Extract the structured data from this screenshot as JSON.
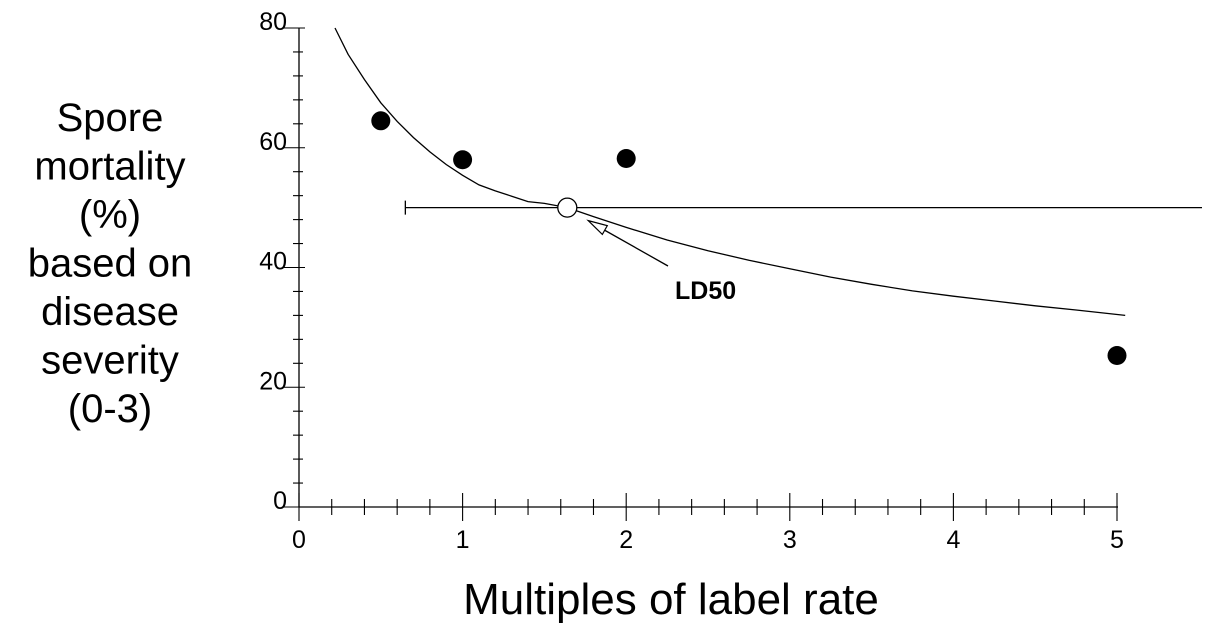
{
  "chart_data": {
    "type": "scatter",
    "title": "",
    "xlabel": "Multiples of label rate",
    "ylabel_lines": [
      "Spore",
      "mortality",
      "(%)",
      "based on",
      "disease",
      "severity",
      "(0-3)"
    ],
    "xlim": [
      0,
      5
    ],
    "ylim": [
      0,
      80
    ],
    "x_ticks": [
      "0",
      "1",
      "2",
      "3",
      "4",
      "5"
    ],
    "y_ticks": [
      "0",
      "20",
      "40",
      "60",
      "80"
    ],
    "grid": false,
    "series": [
      {
        "marker": "filled-circle",
        "x": [
          0.5,
          1,
          2,
          5
        ],
        "y": [
          64.5,
          58,
          58.2,
          25.3
        ]
      }
    ],
    "fit_curve": {
      "x": [
        0.22,
        0.3,
        0.4,
        0.5,
        0.6,
        0.7,
        0.8,
        0.9,
        1.0,
        1.1,
        1.2,
        1.3,
        1.4,
        1.5,
        1.64,
        1.8,
        2.0,
        2.25,
        2.5,
        2.75,
        3.0,
        3.25,
        3.5,
        3.75,
        4.0,
        4.25,
        4.5,
        4.75,
        5.05
      ],
      "y": [
        80,
        75.6,
        71.4,
        67.5,
        64.4,
        61.7,
        59.3,
        57.2,
        55.4,
        53.8,
        52.8,
        51.9,
        51.0,
        50.7,
        50,
        48.5,
        46.7,
        44.6,
        42.8,
        41.2,
        39.8,
        38.4,
        37.2,
        36.1,
        35.2,
        34.4,
        33.6,
        32.9,
        32
      ]
    },
    "ld50": {
      "label": "LD50",
      "x": 1.64,
      "y": 50,
      "ci_low": 0.65,
      "ci_high": 5.5
    }
  }
}
